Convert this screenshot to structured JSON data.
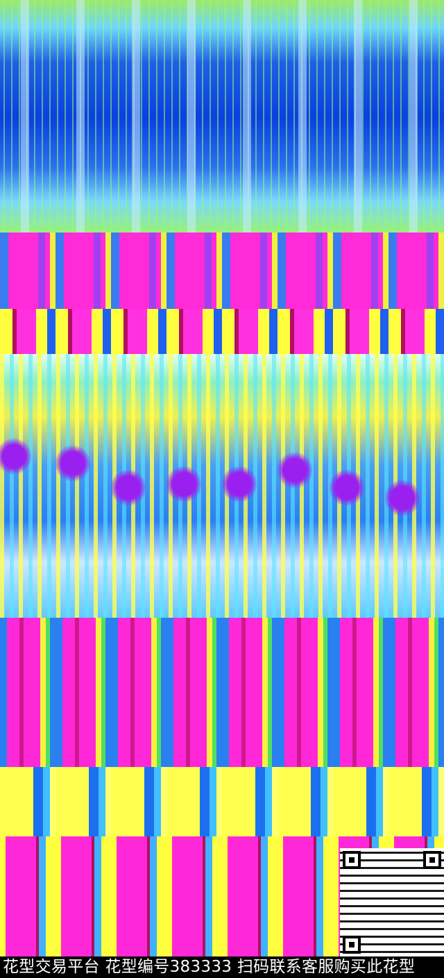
{
  "image": {
    "description_colors": {
      "blue": "#0a3fe0",
      "magenta": "#ff28d8",
      "yellow": "#ffff40",
      "cyan": "#40c0ff",
      "green": "#9af07a",
      "purple": "#9a20f0"
    }
  },
  "watermark": {
    "text": "花型交易平台 花型编号383333 扫码联系客服购买此花型"
  },
  "qr_code": {
    "icon": "qr-code-icon"
  }
}
